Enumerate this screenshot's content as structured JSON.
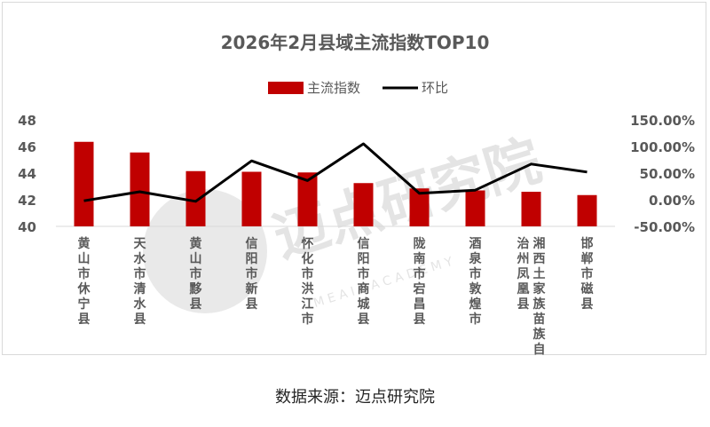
{
  "source_text": "数据来源：迈点研究院",
  "watermark": {
    "main": "迈点研究院",
    "sub": "M E A I N   A C A D E M Y"
  },
  "colors": {
    "bar": "#c00000",
    "line": "#000000",
    "text": "#595959",
    "watermark": "#dcdcdc"
  },
  "chart_data": {
    "type": "bar",
    "title": "2026年2月县域主流指数TOP10",
    "legend_position": "top-center",
    "grid": false,
    "categories": [
      "黄山市休宁县",
      "天水市清水县",
      "黄山市黟县",
      "信阳市新县",
      "怀化市洪江市",
      "信阳市商城县",
      "陇南市宕昌县",
      "酒泉市敦煌市",
      "湘西土家族苗族自治州凤凰县",
      "邯郸市磁县"
    ],
    "category_label_lines": [
      [
        "黄山市休宁县"
      ],
      [
        "天水市清水县"
      ],
      [
        "黄山市黟县"
      ],
      [
        "信阳市新县"
      ],
      [
        "怀化市洪江市"
      ],
      [
        "信阳市商城县"
      ],
      [
        "陇南市宕昌县"
      ],
      [
        "酒泉市敦煌市"
      ],
      [
        "湘西土家族苗族自",
        "治州凤凰县"
      ],
      [
        "邯郸市磁县"
      ]
    ],
    "series": [
      {
        "name": "主流指数",
        "type": "bar",
        "axis": "left",
        "values": [
          46.35,
          45.55,
          44.15,
          44.1,
          44.05,
          43.25,
          42.85,
          42.7,
          42.6,
          42.35
        ]
      },
      {
        "name": "环比",
        "type": "line",
        "axis": "right",
        "values": [
          -0.02,
          0.15,
          -0.03,
          0.73,
          0.36,
          1.05,
          0.12,
          0.18,
          0.67,
          0.52
        ]
      }
    ],
    "y_left": {
      "min": 40,
      "max": 48,
      "ticks": [
        "40",
        "42",
        "44",
        "46",
        "48"
      ]
    },
    "y_right": {
      "min": -0.5,
      "max": 1.5,
      "ticks": [
        "-50.00%",
        "0.00%",
        "50.00%",
        "100.00%",
        "150.00%"
      ]
    }
  }
}
